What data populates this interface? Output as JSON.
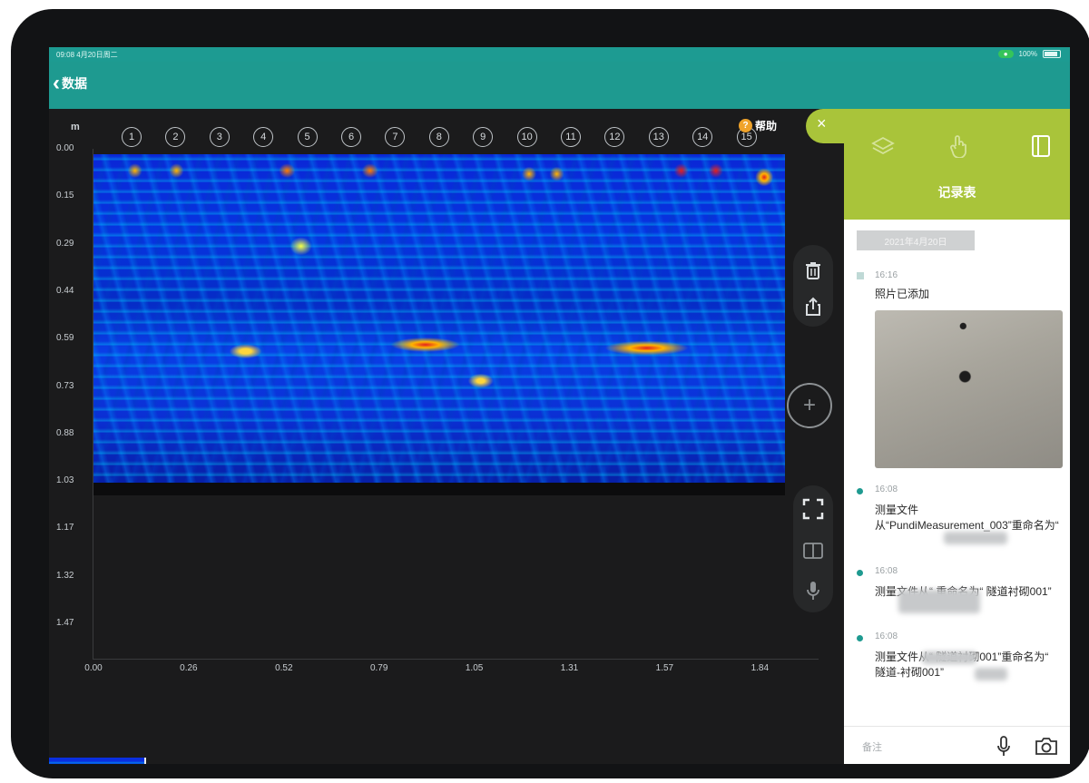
{
  "status": {
    "time": "09:08 4月20日周二",
    "chip": "●",
    "battery": "100%"
  },
  "nav": {
    "back_label": "数据"
  },
  "chart": {
    "unit": "m",
    "help_label": "帮助",
    "help_icon": "?",
    "positions": [
      "1",
      "2",
      "3",
      "4",
      "5",
      "6",
      "7",
      "8",
      "9",
      "10",
      "11",
      "12",
      "13",
      "14",
      "15"
    ],
    "depth_ticks": [
      "0.00",
      "0.15",
      "0.29",
      "0.44",
      "0.59",
      "0.73",
      "0.88",
      "1.03",
      "1.17",
      "1.32",
      "1.47"
    ],
    "distance_ticks": [
      "0.00",
      "0.26",
      "0.52",
      "0.79",
      "1.05",
      "1.31",
      "1.57",
      "1.84"
    ]
  },
  "chart_data": {
    "type": "heatmap",
    "title": "",
    "xlabel": "",
    "ylabel": "m",
    "x_ticks": [
      0.0,
      0.26,
      0.52,
      0.79,
      1.05,
      1.31,
      1.57,
      1.84
    ],
    "y_ticks": [
      0.0,
      0.15,
      0.29,
      0.44,
      0.59,
      0.73,
      0.88,
      1.03,
      1.17,
      1.32,
      1.47
    ],
    "ylim": [
      0.0,
      1.47
    ],
    "xlim": [
      0.0,
      1.84
    ],
    "grid": false
  },
  "tools": {
    "delete_icon": "trash-icon",
    "share_icon": "share-icon",
    "add_label": "+",
    "crop_icon": "crop-icon",
    "split_icon": "split-view-icon",
    "mic_icon": "microphone-icon"
  },
  "panel": {
    "close_label": "×",
    "title": "记录表",
    "date": "2021年4月20日",
    "entries": [
      {
        "time": "16:16",
        "text": "照片已添加"
      },
      {
        "time": "16:08",
        "text": "测量文件从“PundiMeasurement_003”重命名为“"
      },
      {
        "time": "16:08",
        "text": "测量文件从“ 重命名为“ 隧道衬砌001”"
      },
      {
        "time": "16:08",
        "text": "测量文件从“ 隧道衬砌001”重命名为“ 隧道-衬砌001”"
      }
    ],
    "placeholder": "备注"
  }
}
